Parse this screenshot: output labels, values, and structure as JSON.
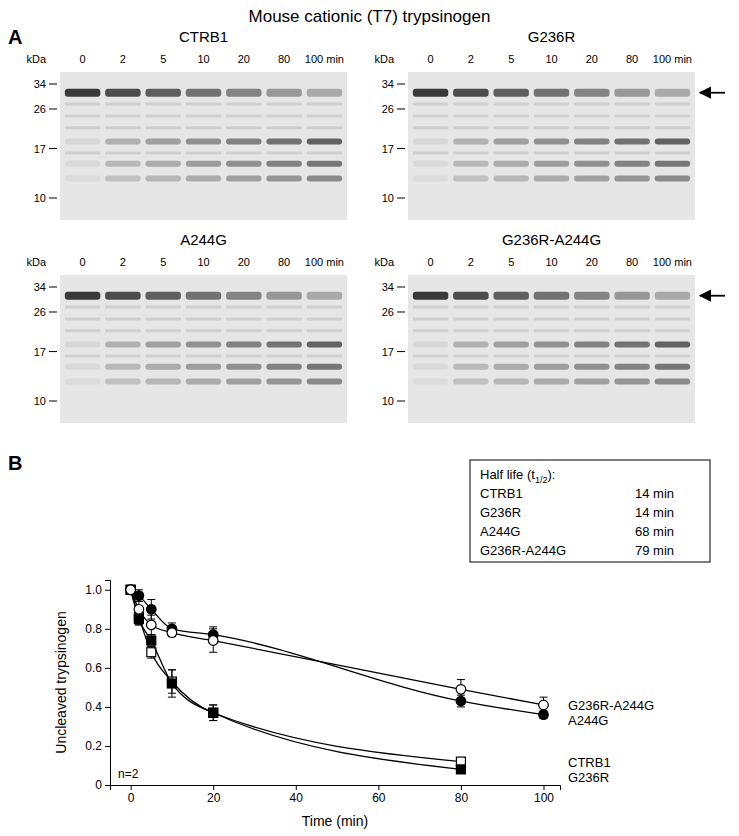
{
  "title": "Mouse cationic (T7) trypsinogen",
  "panel_a": {
    "letter": "A",
    "unit_label": "kDa",
    "markers": [
      34,
      26,
      17,
      10
    ],
    "lanes": [
      "0",
      "2",
      "5",
      "10",
      "20",
      "80",
      "100 min"
    ],
    "gels": [
      {
        "title": "CTRB1",
        "arrow": false
      },
      {
        "title": "G236R",
        "arrow": true
      },
      {
        "title": "A244G",
        "arrow": false
      },
      {
        "title": "G236R-A244G",
        "arrow": true
      }
    ]
  },
  "panel_b": {
    "letter": "B"
  },
  "chart_data": {
    "type": "line",
    "x_label": "Time (min)",
    "y_label": "Uncleaved trypsinogen",
    "xlim": [
      -5,
      104
    ],
    "ylim": [
      0,
      1.05
    ],
    "xticks": [
      0,
      20,
      40,
      60,
      80,
      100
    ],
    "yticks": [
      0,
      0.2,
      0.4,
      0.6,
      0.8,
      {
        "value": 1,
        "label": "1.0"
      }
    ],
    "annotation": "n=2",
    "half_life": {
      "title_before": "Half life (t",
      "title_sub": "1/2",
      "title_after": "):",
      "rows": [
        {
          "name": "CTRB1",
          "half_life": "14 min"
        },
        {
          "name": "G236R",
          "half_life": "14 min"
        },
        {
          "name": "A244G",
          "half_life": "68 min"
        },
        {
          "name": "G236R-A244G",
          "half_life": "79 min"
        }
      ]
    },
    "series": [
      {
        "name": "CTRB1",
        "color": "#000000",
        "marker": "square-open",
        "x": [
          0,
          2,
          5,
          10,
          20,
          80
        ],
        "values": [
          1.0,
          0.86,
          0.68,
          0.53,
          0.37,
          0.12
        ],
        "errors": [
          0.02,
          0.04,
          0.03,
          0.06,
          0.04,
          0.01
        ]
      },
      {
        "name": "G236R",
        "color": "#000000",
        "marker": "square-filled",
        "x": [
          0,
          2,
          5,
          10,
          20,
          80
        ],
        "values": [
          1.0,
          0.85,
          0.74,
          0.52,
          0.37,
          0.08
        ],
        "errors": [
          0.02,
          0.03,
          0.03,
          0.07,
          0.04,
          0.01
        ]
      },
      {
        "name": "A244G",
        "color": "#000000",
        "marker": "circle-filled",
        "x": [
          0,
          2,
          5,
          10,
          20,
          80,
          100
        ],
        "values": [
          1.0,
          0.97,
          0.9,
          0.8,
          0.77,
          0.43,
          0.36
        ],
        "errors": [
          0.02,
          0.03,
          0.05,
          0.03,
          0.04,
          0.03,
          0.02
        ]
      },
      {
        "name": "G236R-A244G",
        "color": "#000000",
        "marker": "circle-open",
        "x": [
          0,
          2,
          5,
          10,
          20,
          80,
          100
        ],
        "values": [
          1.0,
          0.9,
          0.82,
          0.78,
          0.74,
          0.49,
          0.41
        ],
        "errors": [
          0.02,
          0.04,
          0.05,
          0.02,
          0.06,
          0.05,
          0.04
        ]
      }
    ]
  }
}
